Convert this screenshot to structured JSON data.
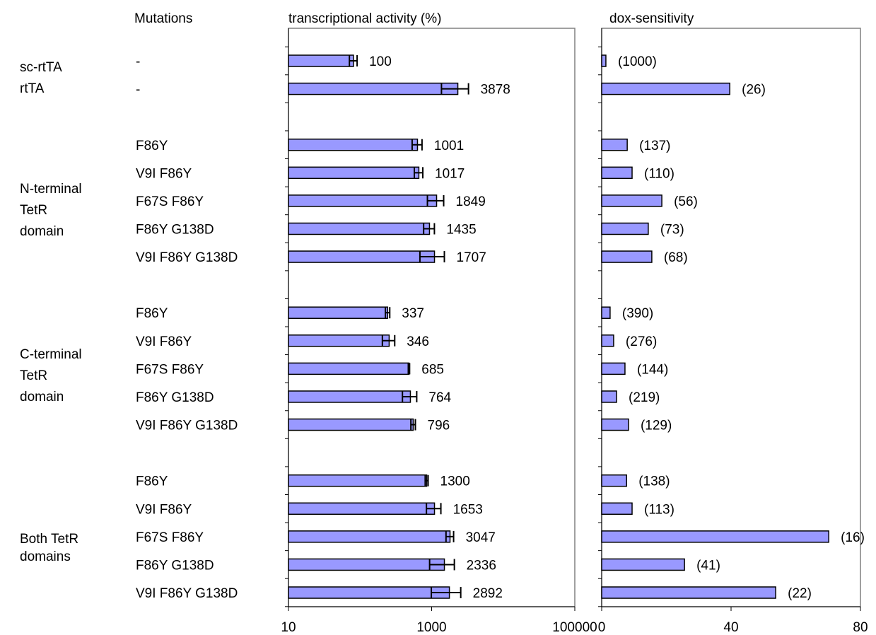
{
  "mutations_header": "Mutations",
  "groups": [
    [
      "sc-rtTA"
    ],
    [
      "rtTA"
    ],
    [
      "N-terminal",
      "TetR",
      "domain"
    ],
    [
      "C-terminal",
      "TetR",
      "domain"
    ],
    [
      "Both TetR",
      "domains"
    ]
  ],
  "chart_data": [
    {
      "type": "bar",
      "title": "transcriptional activity (%)",
      "categories": [
        "-",
        "-",
        null,
        "F86Y",
        "V9I F86Y",
        "F67S F86Y",
        "F86Y G138D",
        "V9I F86Y G138D",
        null,
        "F86Y",
        "V9I F86Y",
        "F67S F86Y",
        "F86Y G138D",
        "V9I F86Y G138D",
        null,
        "F86Y",
        "V9I F86Y",
        "F67S F86Y",
        "F86Y G138D",
        "V9I F86Y G138D"
      ],
      "values": [
        81,
        2322,
        null,
        634,
        663,
        1173,
        933,
        1096,
        null,
        243,
        255,
        482,
        505,
        553,
        null,
        853,
        1096,
        1807,
        1507,
        1770
      ],
      "errors": [
        10,
        950,
        null,
        100,
        90,
        300,
        160,
        410,
        null,
        17,
        50,
        10,
        114,
        40,
        null,
        40,
        250,
        220,
        570,
        780
      ],
      "annotations": [
        100,
        3878,
        null,
        1001,
        1017,
        1849,
        1435,
        1707,
        null,
        337,
        346,
        685,
        764,
        796,
        null,
        1300,
        1653,
        3047,
        2336,
        2892
      ],
      "color": "#9999ff",
      "xscale": "log",
      "xlim": [
        10,
        100000
      ],
      "xticks": [
        10,
        1000,
        100000
      ]
    },
    {
      "type": "bar",
      "title": "dox-sensitivity",
      "values": [
        1.3,
        39.6,
        null,
        7.9,
        9.4,
        18.6,
        14.4,
        15.5,
        null,
        2.6,
        3.7,
        7.2,
        4.6,
        8.3,
        null,
        7.7,
        9.4,
        70.2,
        25.6,
        53.8
      ],
      "annotations": [
        "(1000)",
        "(26)",
        null,
        "(137)",
        "(110)",
        "(56)",
        "(73)",
        "(68)",
        null,
        "(390)",
        "(276)",
        "(144)",
        "(219)",
        "(129)",
        null,
        "(138)",
        "(113)",
        "(16)",
        "(41)",
        "(22)"
      ],
      "color": "#9999ff",
      "xlim": [
        0,
        80
      ],
      "xticks": [
        0,
        40,
        80
      ]
    }
  ]
}
